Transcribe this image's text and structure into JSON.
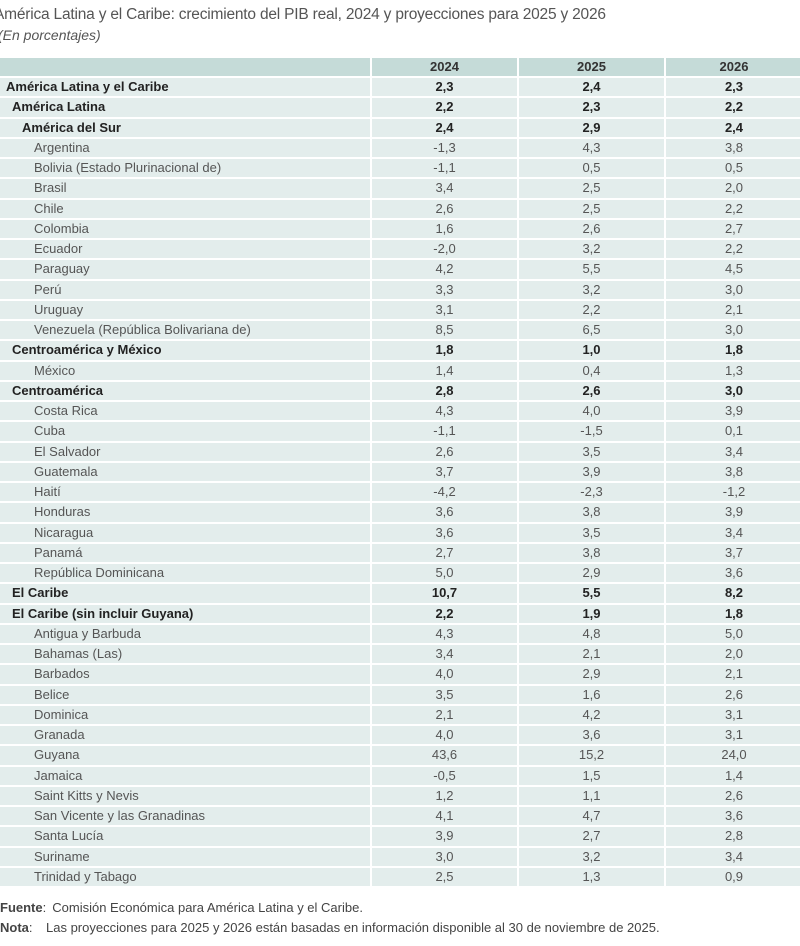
{
  "title": "América Latina y el Caribe: crecimiento del PIB real, 2024 y proyecciones para 2025 y 2026",
  "subtitle": "(En porcentajes)",
  "columns": [
    "",
    "2024",
    "2025",
    "2026"
  ],
  "rows": [
    {
      "level": 0,
      "bold": true,
      "label": "América Latina y el Caribe",
      "values": [
        "2,3",
        "2,4",
        "2,3"
      ]
    },
    {
      "level": 1,
      "bold": true,
      "label": "América Latina",
      "values": [
        "2,2",
        "2,3",
        "2,2"
      ]
    },
    {
      "level": 2,
      "bold": true,
      "label": "América del Sur",
      "values": [
        "2,4",
        "2,9",
        "2,4"
      ]
    },
    {
      "level": 3,
      "bold": false,
      "label": "Argentina",
      "values": [
        "-1,3",
        "4,3",
        "3,8"
      ]
    },
    {
      "level": 3,
      "bold": false,
      "label": "Bolivia (Estado Plurinacional de)",
      "values": [
        "-1,1",
        "0,5",
        "0,5"
      ]
    },
    {
      "level": 3,
      "bold": false,
      "label": "Brasil",
      "values": [
        "3,4",
        "2,5",
        "2,0"
      ]
    },
    {
      "level": 3,
      "bold": false,
      "label": "Chile",
      "values": [
        "2,6",
        "2,5",
        "2,2"
      ]
    },
    {
      "level": 3,
      "bold": false,
      "label": "Colombia",
      "values": [
        "1,6",
        "2,6",
        "2,7"
      ]
    },
    {
      "level": 3,
      "bold": false,
      "label": "Ecuador",
      "values": [
        "-2,0",
        "3,2",
        "2,2"
      ]
    },
    {
      "level": 3,
      "bold": false,
      "label": "Paraguay",
      "values": [
        "4,2",
        "5,5",
        "4,5"
      ]
    },
    {
      "level": 3,
      "bold": false,
      "label": "Perú",
      "values": [
        "3,3",
        "3,2",
        "3,0"
      ]
    },
    {
      "level": 3,
      "bold": false,
      "label": "Uruguay",
      "values": [
        "3,1",
        "2,2",
        "2,1"
      ]
    },
    {
      "level": 3,
      "bold": false,
      "label": "Venezuela (República Bolivariana de)",
      "values": [
        "8,5",
        "6,5",
        "3,0"
      ]
    },
    {
      "level": 1,
      "bold": true,
      "label": "Centroamérica y México",
      "values": [
        "1,8",
        "1,0",
        "1,8"
      ]
    },
    {
      "level": 3,
      "bold": false,
      "label": "México",
      "values": [
        "1,4",
        "0,4",
        "1,3"
      ]
    },
    {
      "level": 1,
      "bold": true,
      "label": "Centroamérica",
      "values": [
        "2,8",
        "2,6",
        "3,0"
      ]
    },
    {
      "level": 3,
      "bold": false,
      "label": "Costa Rica",
      "values": [
        "4,3",
        "4,0",
        "3,9"
      ]
    },
    {
      "level": 3,
      "bold": false,
      "label": "Cuba",
      "values": [
        "-1,1",
        "-1,5",
        "0,1"
      ]
    },
    {
      "level": 3,
      "bold": false,
      "label": "El Salvador",
      "values": [
        "2,6",
        "3,5",
        "3,4"
      ]
    },
    {
      "level": 3,
      "bold": false,
      "label": "Guatemala",
      "values": [
        "3,7",
        "3,9",
        "3,8"
      ]
    },
    {
      "level": 3,
      "bold": false,
      "label": "Haití",
      "values": [
        "-4,2",
        "-2,3",
        "-1,2"
      ]
    },
    {
      "level": 3,
      "bold": false,
      "label": "Honduras",
      "values": [
        "3,6",
        "3,8",
        "3,9"
      ]
    },
    {
      "level": 3,
      "bold": false,
      "label": "Nicaragua",
      "values": [
        "3,6",
        "3,5",
        "3,4"
      ]
    },
    {
      "level": 3,
      "bold": false,
      "label": "Panamá",
      "values": [
        "2,7",
        "3,8",
        "3,7"
      ]
    },
    {
      "level": 3,
      "bold": false,
      "label": "República Dominicana",
      "values": [
        "5,0",
        "2,9",
        "3,6"
      ]
    },
    {
      "level": 1,
      "bold": true,
      "label": "El Caribe",
      "values": [
        "10,7",
        "5,5",
        "8,2"
      ]
    },
    {
      "level": 1,
      "bold": true,
      "label": "El Caribe (sin incluir Guyana)",
      "values": [
        "2,2",
        "1,9",
        "1,8"
      ]
    },
    {
      "level": 3,
      "bold": false,
      "label": "Antigua y Barbuda",
      "values": [
        "4,3",
        "4,8",
        "5,0"
      ]
    },
    {
      "level": 3,
      "bold": false,
      "label": "Bahamas (Las)",
      "values": [
        "3,4",
        "2,1",
        "2,0"
      ]
    },
    {
      "level": 3,
      "bold": false,
      "label": "Barbados",
      "values": [
        "4,0",
        "2,9",
        "2,1"
      ]
    },
    {
      "level": 3,
      "bold": false,
      "label": "Belice",
      "values": [
        "3,5",
        "1,6",
        "2,6"
      ]
    },
    {
      "level": 3,
      "bold": false,
      "label": "Dominica",
      "values": [
        "2,1",
        "4,2",
        "3,1"
      ]
    },
    {
      "level": 3,
      "bold": false,
      "label": "Granada",
      "values": [
        "4,0",
        "3,6",
        "3,1"
      ]
    },
    {
      "level": 3,
      "bold": false,
      "label": "Guyana",
      "values": [
        "43,6",
        "15,2",
        "24,0"
      ]
    },
    {
      "level": 3,
      "bold": false,
      "label": "Jamaica",
      "values": [
        "-0,5",
        "1,5",
        "1,4"
      ]
    },
    {
      "level": 3,
      "bold": false,
      "label": "Saint Kitts y Nevis",
      "values": [
        "1,2",
        "1,1",
        "2,6"
      ]
    },
    {
      "level": 3,
      "bold": false,
      "label": "San Vicente y las Granadinas",
      "values": [
        "4,1",
        "4,7",
        "3,6"
      ]
    },
    {
      "level": 3,
      "bold": false,
      "label": "Santa Lucía",
      "values": [
        "3,9",
        "2,7",
        "2,8"
      ]
    },
    {
      "level": 3,
      "bold": false,
      "label": "Suriname",
      "values": [
        "3,0",
        "3,2",
        "3,4"
      ]
    },
    {
      "level": 3,
      "bold": false,
      "label": "Trinidad y Tabago",
      "values": [
        "2,5",
        "1,3",
        "0,9"
      ]
    }
  ],
  "footnotes": {
    "source_label": "Fuente",
    "source_text": "Comisión Económica para América Latina y el Caribe.",
    "note_label": "Nota",
    "note_text": "Las proyecciones para 2025 y 2026 están basadas en información disponible al 30 de noviembre de 2025."
  },
  "colors": {
    "header_bg": "#c5dbd8",
    "row_bg": "#e3edec"
  }
}
